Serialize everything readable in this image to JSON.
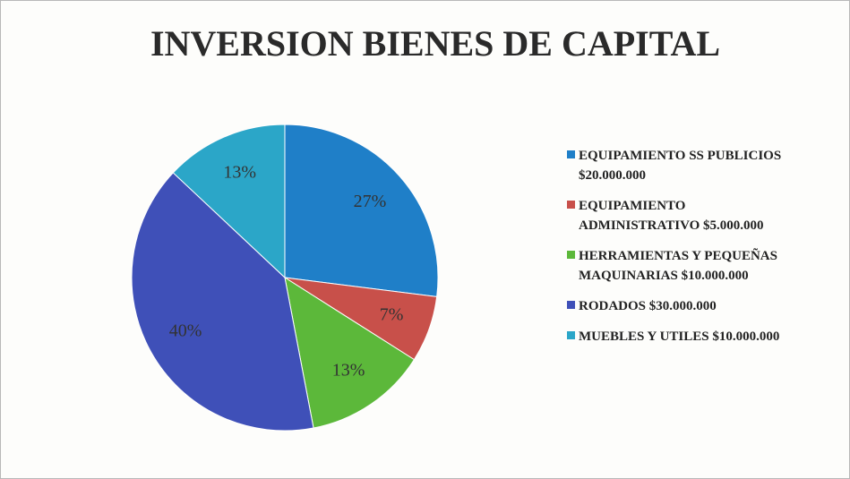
{
  "chart_data": {
    "type": "pie",
    "title": "INVERSION BIENES DE CAPITAL",
    "categories": [
      "EQUIPAMIENTO SS PUBLICIOS\n$20.000.000",
      "EQUIPAMIENTO\nADMINISTRATIVO $5.000.000",
      "HERRAMIENTAS Y PEQUEÑAS\nMAQUINARIAS $10.000.000",
      "RODADOS $30.000.000",
      "MUEBLES Y UTILES $10.000.000"
    ],
    "values": [
      27,
      7,
      13,
      40,
      13
    ],
    "value_labels": [
      "27%",
      "7%",
      "13%",
      "40%",
      "13%"
    ],
    "colors": [
      "#1f7fc8",
      "#c8504a",
      "#5cb83a",
      "#3f50b8",
      "#2ba6c8"
    ],
    "legend": "right"
  }
}
